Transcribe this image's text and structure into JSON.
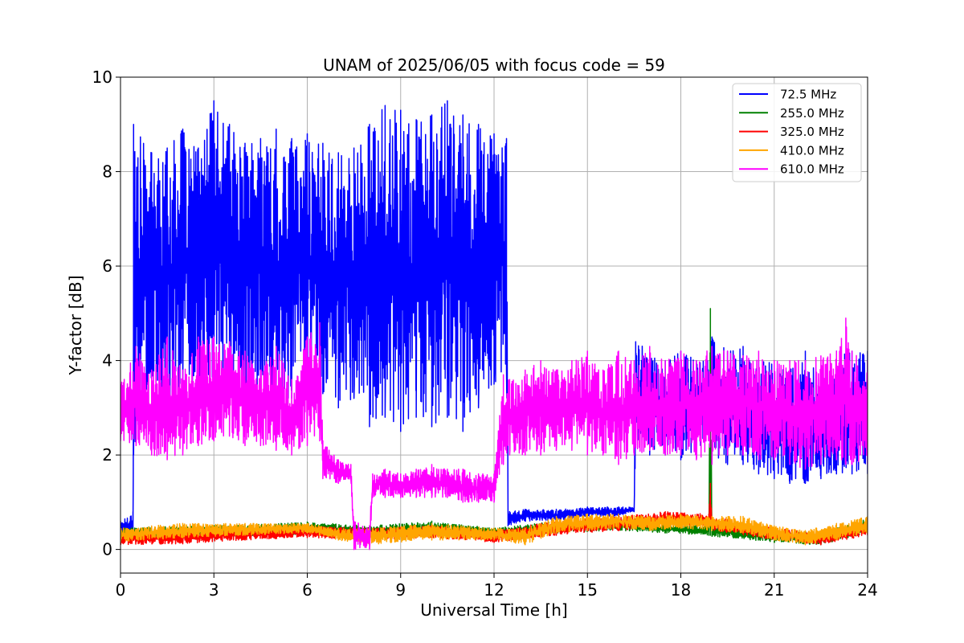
{
  "chart_data": {
    "type": "line",
    "title": "UNAM of 2025/06/05 with focus code = 59",
    "xlabel": "Universal Time [h]",
    "ylabel": "Y-factor [dB]",
    "xlim": [
      0,
      24
    ],
    "ylim": [
      -0.5,
      10
    ],
    "xticks": [
      0,
      3,
      6,
      9,
      12,
      15,
      18,
      21,
      24
    ],
    "yticks": [
      0,
      2,
      4,
      6,
      8,
      10
    ],
    "grid": true,
    "legend_position": "top-right",
    "series": [
      {
        "name": " 72.5 MHz",
        "color": "#0000ff",
        "x": [
          0,
          0.4,
          0.42,
          1,
          1.5,
          2,
          2.5,
          3,
          3.5,
          4,
          4.5,
          5,
          5.5,
          6,
          6.5,
          7,
          7.5,
          8,
          8.5,
          9,
          9.5,
          10,
          10.5,
          11,
          11.5,
          12,
          12.4,
          12.45,
          13,
          14,
          15,
          16,
          16.5,
          16.55,
          17,
          17.5,
          18,
          18.5,
          19,
          19.5,
          20,
          20.5,
          21,
          21.5,
          22,
          22.5,
          23,
          23.5,
          24
        ],
        "low": [
          0.2,
          0.3,
          2.0,
          3.5,
          3.0,
          3.5,
          3.0,
          3.5,
          3.5,
          3.0,
          3.5,
          3.0,
          3.2,
          3.5,
          3.3,
          3.0,
          3.2,
          2.6,
          2.8,
          2.5,
          2.8,
          2.6,
          2.8,
          2.5,
          3.0,
          3.5,
          3.8,
          0.5,
          0.6,
          0.6,
          0.7,
          0.7,
          0.8,
          2.2,
          2.0,
          2.0,
          1.9,
          2.0,
          2.0,
          1.8,
          1.8,
          1.6,
          1.5,
          1.4,
          1.4,
          1.5,
          1.6,
          1.6,
          1.6
        ],
        "high": [
          0.6,
          0.8,
          9.0,
          8.4,
          8.5,
          8.9,
          8.5,
          9.5,
          9.0,
          8.6,
          8.7,
          8.9,
          8.7,
          8.8,
          8.6,
          8.4,
          8.5,
          9.0,
          9.4,
          9.3,
          9.1,
          9.2,
          9.5,
          9.2,
          9.0,
          8.8,
          8.7,
          0.8,
          0.85,
          0.85,
          0.9,
          0.9,
          0.9,
          4.4,
          4.2,
          4.0,
          4.2,
          4.0,
          4.5,
          4.2,
          4.3,
          4.0,
          4.0,
          3.8,
          4.2,
          3.6,
          4.2,
          4.2,
          4.2
        ]
      },
      {
        "name": "255.0 MHz",
        "color": "#008000",
        "x": [
          0,
          2,
          4,
          6,
          8,
          10,
          12,
          14,
          16,
          17.5,
          18.9,
          18.95,
          19,
          21,
          22.5,
          24
        ],
        "low": [
          0.2,
          0.25,
          0.28,
          0.32,
          0.28,
          0.3,
          0.25,
          0.35,
          0.4,
          0.35,
          0.3,
          0.3,
          0.28,
          0.15,
          0.1,
          0.35
        ],
        "high": [
          0.45,
          0.5,
          0.52,
          0.58,
          0.5,
          0.6,
          0.45,
          0.6,
          0.65,
          0.55,
          0.5,
          5.1,
          0.5,
          0.4,
          0.35,
          0.65
        ]
      },
      {
        "name": "325.0 MHz",
        "color": "#ff0000",
        "x": [
          0,
          2,
          4,
          6,
          8,
          10,
          12,
          14,
          16,
          17.5,
          18.9,
          18.95,
          19,
          21,
          22.5,
          24
        ],
        "low": [
          0.1,
          0.12,
          0.2,
          0.25,
          0.2,
          0.25,
          0.15,
          0.3,
          0.4,
          0.5,
          0.5,
          0.5,
          0.4,
          0.2,
          0.1,
          0.3
        ],
        "high": [
          0.35,
          0.4,
          0.45,
          0.5,
          0.45,
          0.5,
          0.4,
          0.6,
          0.7,
          0.8,
          0.75,
          1.4,
          0.7,
          0.45,
          0.35,
          0.55
        ]
      },
      {
        "name": "410.0 MHz",
        "color": "#ffa500",
        "x": [
          0,
          2,
          4,
          6,
          7,
          8,
          10,
          12,
          13,
          14,
          15,
          16,
          17,
          18,
          19,
          20,
          21,
          22,
          23,
          24
        ],
        "low": [
          0.15,
          0.25,
          0.3,
          0.35,
          0.2,
          0.1,
          0.2,
          0.2,
          0.1,
          0.35,
          0.4,
          0.45,
          0.4,
          0.45,
          0.4,
          0.35,
          0.2,
          0.1,
          0.2,
          0.35
        ],
        "high": [
          0.45,
          0.55,
          0.55,
          0.55,
          0.45,
          0.45,
          0.55,
          0.45,
          0.45,
          0.7,
          0.75,
          0.75,
          0.7,
          0.75,
          0.7,
          0.7,
          0.5,
          0.4,
          0.55,
          0.7
        ]
      },
      {
        "name": "610.0 MHz",
        "color": "#ff00ff",
        "x": [
          0,
          0.5,
          1,
          1.5,
          2,
          2.5,
          3,
          3.5,
          4,
          4.5,
          5,
          5.5,
          6,
          6.4,
          6.5,
          7,
          7.4,
          7.5,
          8,
          8.1,
          8.5,
          9,
          9.5,
          10,
          10.5,
          11,
          11.5,
          12,
          12.3,
          12.5,
          13,
          13.5,
          14,
          14.5,
          15,
          15.5,
          16,
          16.5,
          17,
          17.5,
          18,
          18.5,
          19,
          19.5,
          20,
          20.5,
          21,
          21.5,
          22,
          22.5,
          23,
          23.3,
          23.5,
          24
        ],
        "low": [
          2.3,
          2.2,
          2.0,
          1.9,
          2.0,
          2.2,
          2.3,
          2.4,
          2.2,
          2.2,
          2.1,
          2.0,
          2.2,
          2.3,
          1.5,
          1.4,
          1.5,
          0.0,
          0.0,
          1.1,
          1.1,
          1.1,
          1.1,
          1.1,
          1.1,
          1.0,
          1.0,
          1.0,
          1.8,
          2.0,
          2.0,
          2.0,
          2.1,
          2.1,
          2.0,
          2.0,
          1.8,
          2.0,
          2.1,
          2.0,
          2.0,
          1.9,
          1.8,
          2.0,
          2.0,
          1.9,
          1.9,
          1.8,
          1.7,
          1.8,
          1.9,
          1.8,
          1.8,
          1.8
        ],
        "high": [
          3.5,
          4.3,
          3.8,
          4.5,
          3.8,
          4.5,
          4.5,
          4.4,
          4.2,
          3.8,
          4.3,
          3.6,
          4.5,
          4.8,
          2.3,
          1.9,
          1.8,
          0.6,
          0.5,
          1.6,
          1.7,
          1.6,
          1.7,
          1.8,
          1.7,
          1.7,
          1.6,
          1.6,
          3.7,
          3.6,
          3.8,
          4.0,
          3.8,
          4.0,
          4.2,
          3.8,
          4.2,
          4.0,
          4.3,
          4.0,
          4.2,
          4.0,
          4.3,
          4.2,
          4.1,
          4.2,
          4.0,
          4.0,
          4.0,
          4.1,
          4.2,
          4.9,
          4.2,
          4.0
        ]
      }
    ]
  }
}
